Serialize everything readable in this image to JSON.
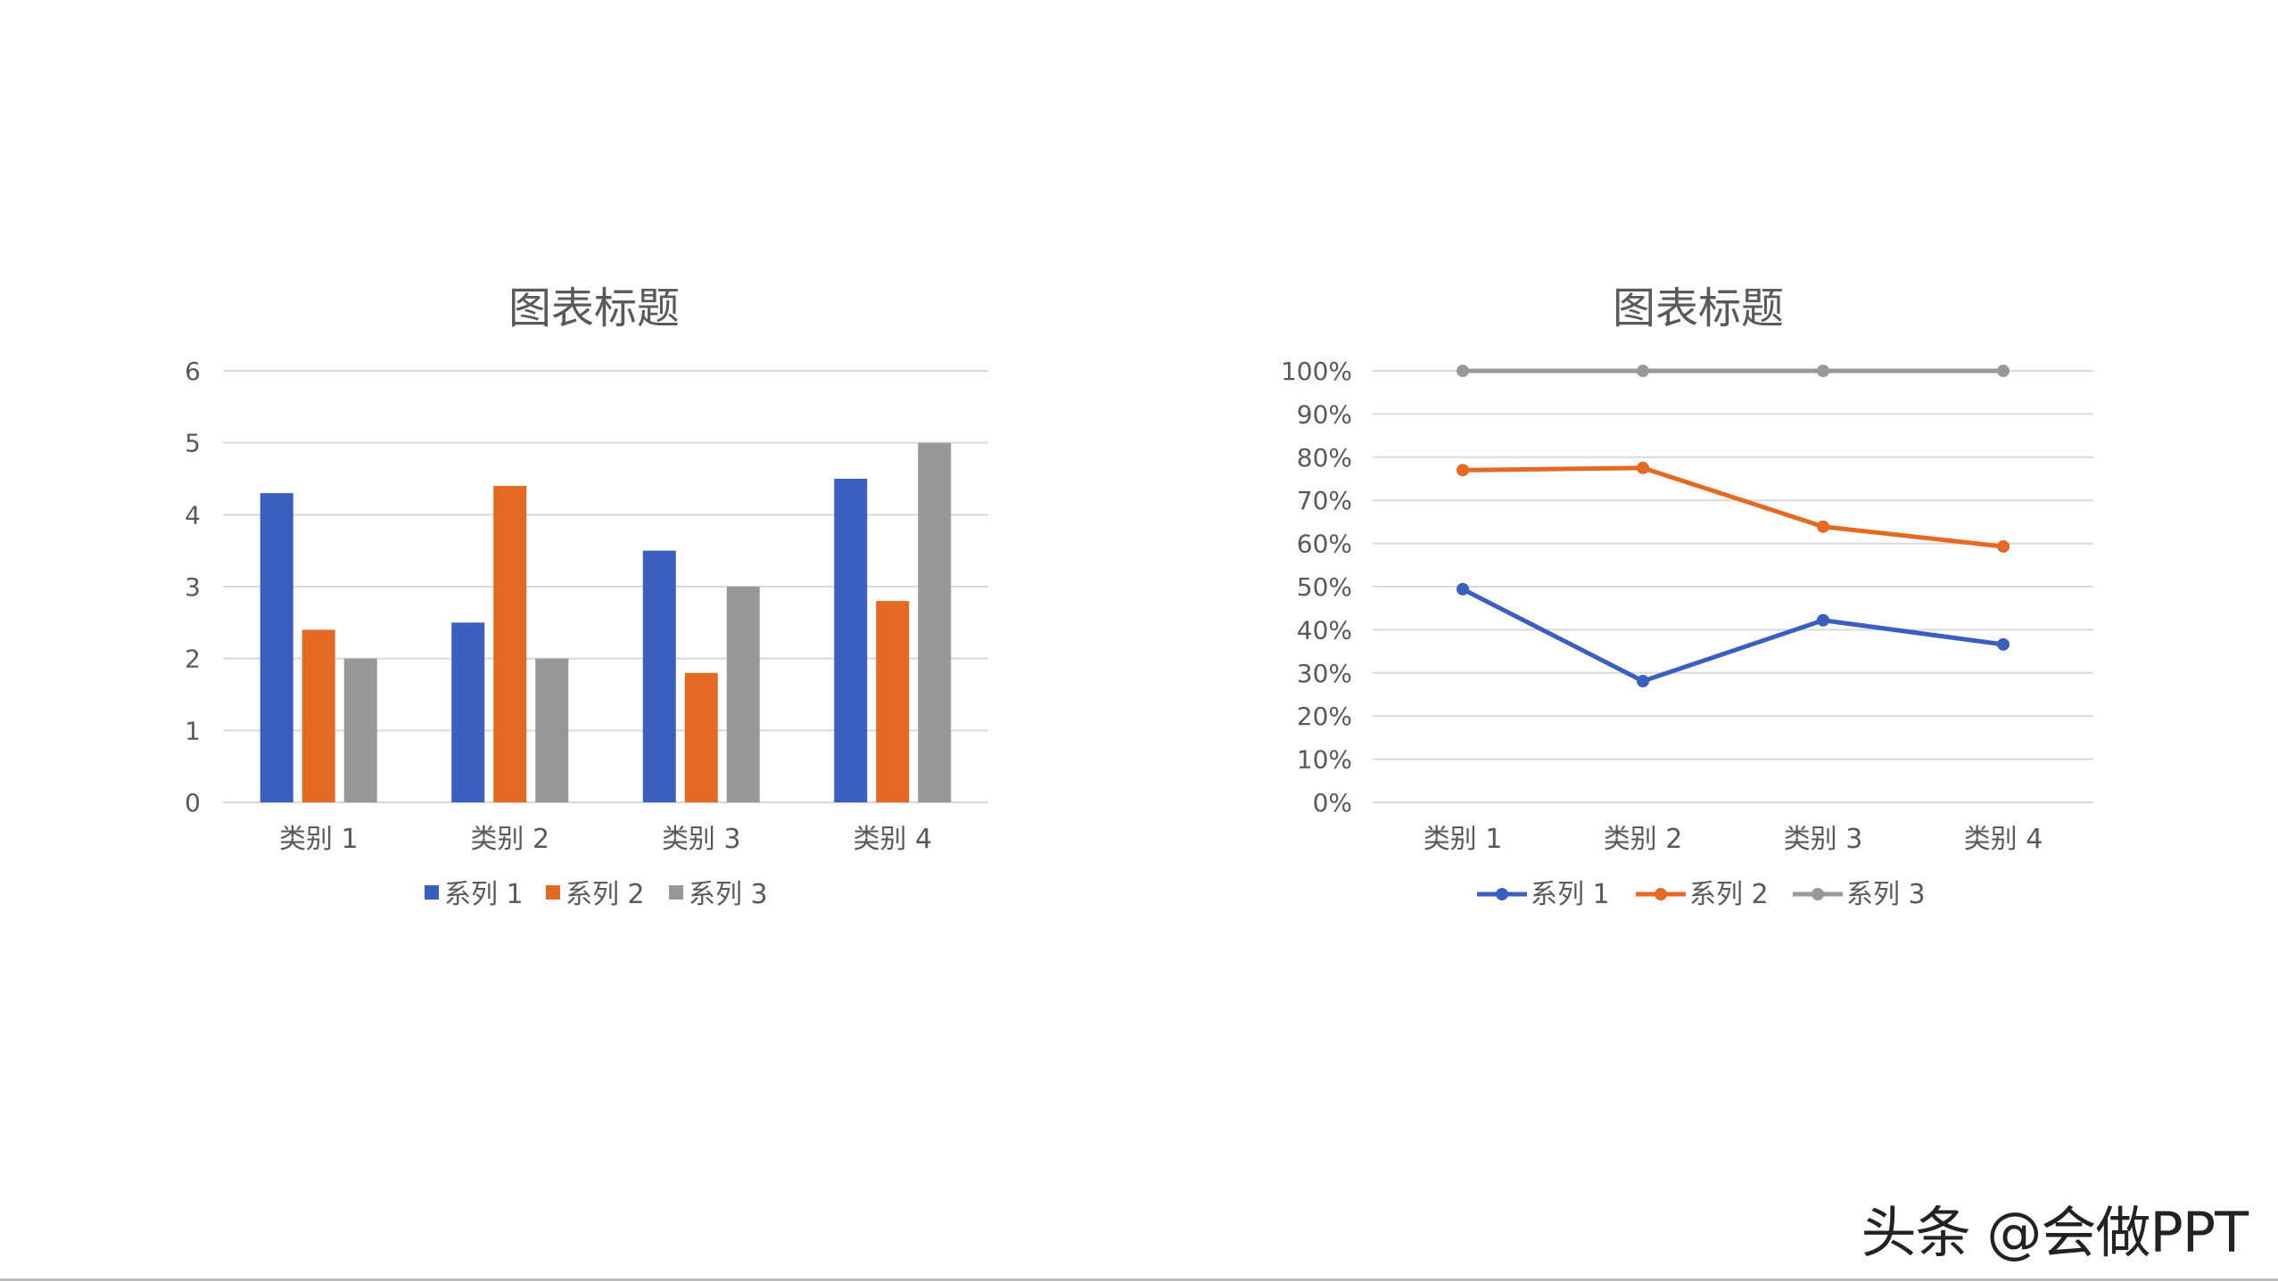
{
  "colors": {
    "series1": "#3A5FBF",
    "series2": "#E46A23",
    "series3": "#989898",
    "grid": "#D9D9D9",
    "text": "#595959"
  },
  "chart_data": [
    {
      "type": "bar",
      "title": "图表标题",
      "categories": [
        "类别 1",
        "类别 2",
        "类别 3",
        "类别 4"
      ],
      "series": [
        {
          "name": "系列 1",
          "values": [
            4.3,
            2.5,
            3.5,
            4.5
          ]
        },
        {
          "name": "系列 2",
          "values": [
            2.4,
            4.4,
            1.8,
            2.8
          ]
        },
        {
          "name": "系列 3",
          "values": [
            2,
            2,
            3,
            5
          ]
        }
      ],
      "ylim": [
        0,
        6
      ],
      "yticks": [
        "0",
        "1",
        "2",
        "3",
        "4",
        "5",
        "6"
      ],
      "grid": true,
      "legend": "bottom"
    },
    {
      "type": "line",
      "stacking": "percent",
      "title": "图表标题",
      "categories": [
        "类别 1",
        "类别 2",
        "类别 3",
        "类别 4"
      ],
      "series": [
        {
          "name": "系列 1",
          "values": [
            49.4,
            28.1,
            42.2,
            36.6
          ]
        },
        {
          "name": "系列 2",
          "values": [
            77.0,
            77.5,
            63.9,
            59.3
          ]
        },
        {
          "name": "系列 3",
          "values": [
            100,
            100,
            100,
            100
          ]
        }
      ],
      "ylim": [
        0,
        100
      ],
      "yticks": [
        "0%",
        "10%",
        "20%",
        "30%",
        "40%",
        "50%",
        "60%",
        "70%",
        "80%",
        "90%",
        "100%"
      ],
      "grid": true,
      "legend": "bottom",
      "markers": true
    }
  ],
  "watermark": "头条 @会做PPT"
}
